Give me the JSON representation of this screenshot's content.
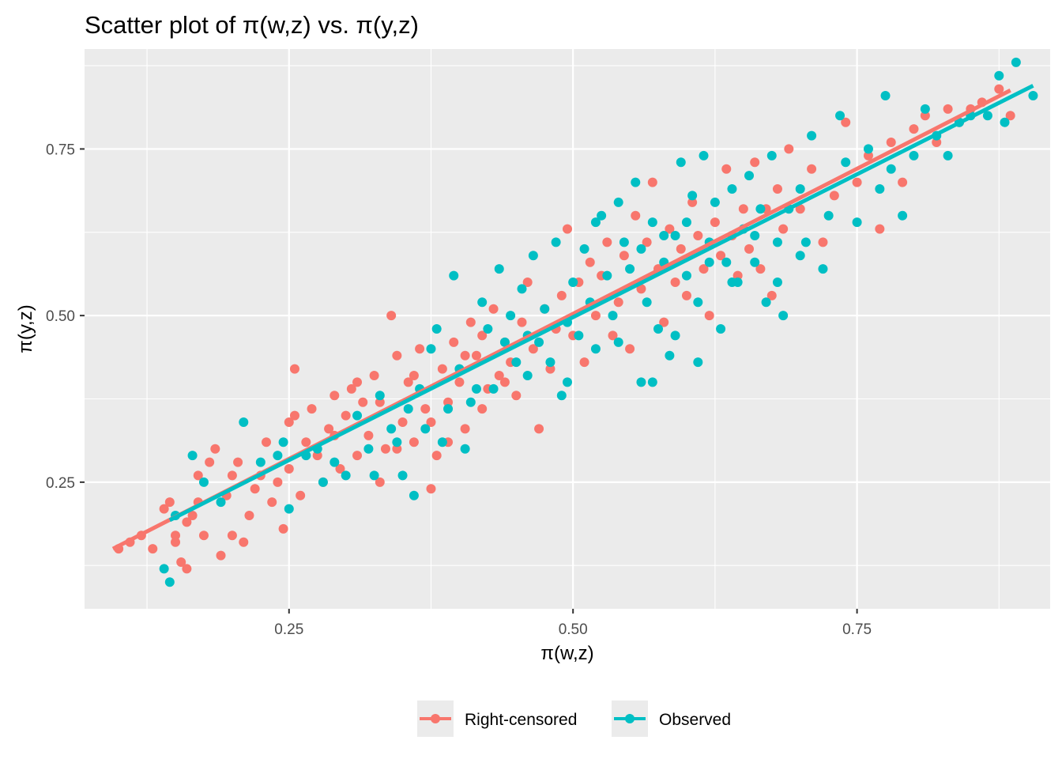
{
  "chart_data": {
    "type": "scatter",
    "title": "Scatter plot of π(w,z) vs. π(y,z)",
    "xlabel": "π(w,z)",
    "ylabel": "π(y,z)",
    "xlim": [
      0.07,
      0.92
    ],
    "ylim": [
      0.06,
      0.9
    ],
    "x_ticks": [
      0.25,
      0.5,
      0.75
    ],
    "x_tick_labels": [
      "0.25",
      "0.50",
      "0.75"
    ],
    "y_ticks": [
      0.25,
      0.5,
      0.75
    ],
    "y_tick_labels": [
      "0.25",
      "0.50",
      "0.75"
    ],
    "grid": true,
    "legend_position": "bottom",
    "series": [
      {
        "name": "Right-censored",
        "color": "#F8766D",
        "trend_line": {
          "x": [
            0.095,
            0.885
          ],
          "y": [
            0.15,
            0.838
          ]
        },
        "points": [
          [
            0.1,
            0.15
          ],
          [
            0.11,
            0.16
          ],
          [
            0.12,
            0.17
          ],
          [
            0.13,
            0.15
          ],
          [
            0.14,
            0.21
          ],
          [
            0.145,
            0.22
          ],
          [
            0.15,
            0.17
          ],
          [
            0.15,
            0.16
          ],
          [
            0.155,
            0.13
          ],
          [
            0.16,
            0.12
          ],
          [
            0.16,
            0.19
          ],
          [
            0.165,
            0.2
          ],
          [
            0.17,
            0.22
          ],
          [
            0.17,
            0.26
          ],
          [
            0.175,
            0.17
          ],
          [
            0.18,
            0.28
          ],
          [
            0.185,
            0.3
          ],
          [
            0.19,
            0.14
          ],
          [
            0.195,
            0.23
          ],
          [
            0.2,
            0.17
          ],
          [
            0.2,
            0.26
          ],
          [
            0.205,
            0.28
          ],
          [
            0.21,
            0.16
          ],
          [
            0.215,
            0.2
          ],
          [
            0.22,
            0.24
          ],
          [
            0.225,
            0.26
          ],
          [
            0.23,
            0.31
          ],
          [
            0.235,
            0.22
          ],
          [
            0.24,
            0.25
          ],
          [
            0.245,
            0.18
          ],
          [
            0.25,
            0.27
          ],
          [
            0.25,
            0.34
          ],
          [
            0.255,
            0.42
          ],
          [
            0.26,
            0.23
          ],
          [
            0.265,
            0.31
          ],
          [
            0.27,
            0.36
          ],
          [
            0.275,
            0.29
          ],
          [
            0.28,
            0.25
          ],
          [
            0.285,
            0.33
          ],
          [
            0.29,
            0.38
          ],
          [
            0.295,
            0.27
          ],
          [
            0.3,
            0.35
          ],
          [
            0.305,
            0.39
          ],
          [
            0.31,
            0.29
          ],
          [
            0.315,
            0.37
          ],
          [
            0.32,
            0.32
          ],
          [
            0.325,
            0.41
          ],
          [
            0.33,
            0.25
          ],
          [
            0.335,
            0.3
          ],
          [
            0.34,
            0.5
          ],
          [
            0.345,
            0.44
          ],
          [
            0.35,
            0.34
          ],
          [
            0.355,
            0.4
          ],
          [
            0.36,
            0.31
          ],
          [
            0.365,
            0.45
          ],
          [
            0.37,
            0.36
          ],
          [
            0.375,
            0.24
          ],
          [
            0.38,
            0.29
          ],
          [
            0.385,
            0.42
          ],
          [
            0.39,
            0.37
          ],
          [
            0.395,
            0.46
          ],
          [
            0.4,
            0.4
          ],
          [
            0.405,
            0.33
          ],
          [
            0.41,
            0.49
          ],
          [
            0.415,
            0.44
          ],
          [
            0.42,
            0.36
          ],
          [
            0.425,
            0.39
          ],
          [
            0.43,
            0.51
          ],
          [
            0.435,
            0.41
          ],
          [
            0.44,
            0.46
          ],
          [
            0.445,
            0.43
          ],
          [
            0.45,
            0.38
          ],
          [
            0.455,
            0.49
          ],
          [
            0.46,
            0.55
          ],
          [
            0.465,
            0.45
          ],
          [
            0.47,
            0.33
          ],
          [
            0.475,
            0.51
          ],
          [
            0.48,
            0.42
          ],
          [
            0.485,
            0.48
          ],
          [
            0.49,
            0.53
          ],
          [
            0.495,
            0.63
          ],
          [
            0.5,
            0.47
          ],
          [
            0.505,
            0.55
          ],
          [
            0.51,
            0.43
          ],
          [
            0.515,
            0.58
          ],
          [
            0.52,
            0.5
          ],
          [
            0.525,
            0.56
          ],
          [
            0.53,
            0.61
          ],
          [
            0.535,
            0.47
          ],
          [
            0.54,
            0.52
          ],
          [
            0.545,
            0.59
          ],
          [
            0.55,
            0.45
          ],
          [
            0.555,
            0.65
          ],
          [
            0.56,
            0.54
          ],
          [
            0.565,
            0.61
          ],
          [
            0.57,
            0.7
          ],
          [
            0.575,
            0.57
          ],
          [
            0.58,
            0.49
          ],
          [
            0.585,
            0.63
          ],
          [
            0.59,
            0.55
          ],
          [
            0.595,
            0.6
          ],
          [
            0.6,
            0.53
          ],
          [
            0.605,
            0.67
          ],
          [
            0.61,
            0.62
          ],
          [
            0.615,
            0.57
          ],
          [
            0.62,
            0.5
          ],
          [
            0.625,
            0.64
          ],
          [
            0.63,
            0.59
          ],
          [
            0.635,
            0.72
          ],
          [
            0.64,
            0.62
          ],
          [
            0.645,
            0.56
          ],
          [
            0.65,
            0.66
          ],
          [
            0.655,
            0.6
          ],
          [
            0.66,
            0.73
          ],
          [
            0.665,
            0.57
          ],
          [
            0.67,
            0.66
          ],
          [
            0.675,
            0.53
          ],
          [
            0.68,
            0.69
          ],
          [
            0.685,
            0.63
          ],
          [
            0.69,
            0.75
          ],
          [
            0.7,
            0.66
          ],
          [
            0.71,
            0.72
          ],
          [
            0.72,
            0.61
          ],
          [
            0.73,
            0.68
          ],
          [
            0.74,
            0.79
          ],
          [
            0.75,
            0.7
          ],
          [
            0.76,
            0.74
          ],
          [
            0.77,
            0.63
          ],
          [
            0.78,
            0.76
          ],
          [
            0.79,
            0.7
          ],
          [
            0.8,
            0.78
          ],
          [
            0.81,
            0.8
          ],
          [
            0.82,
            0.76
          ],
          [
            0.83,
            0.81
          ],
          [
            0.84,
            0.79
          ],
          [
            0.85,
            0.81
          ],
          [
            0.86,
            0.82
          ],
          [
            0.875,
            0.84
          ],
          [
            0.885,
            0.8
          ],
          [
            0.255,
            0.35
          ],
          [
            0.29,
            0.32
          ],
          [
            0.31,
            0.4
          ],
          [
            0.33,
            0.37
          ],
          [
            0.345,
            0.3
          ],
          [
            0.36,
            0.41
          ],
          [
            0.375,
            0.34
          ],
          [
            0.39,
            0.31
          ],
          [
            0.405,
            0.44
          ],
          [
            0.42,
            0.47
          ],
          [
            0.44,
            0.4
          ]
        ]
      },
      {
        "name": "Observed",
        "color": "#00BFC4",
        "trend_line": {
          "x": [
            0.145,
            0.905
          ],
          "y": [
            0.193,
            0.845
          ]
        },
        "points": [
          [
            0.14,
            0.12
          ],
          [
            0.145,
            0.1
          ],
          [
            0.15,
            0.2
          ],
          [
            0.165,
            0.29
          ],
          [
            0.175,
            0.25
          ],
          [
            0.19,
            0.22
          ],
          [
            0.21,
            0.34
          ],
          [
            0.225,
            0.28
          ],
          [
            0.24,
            0.29
          ],
          [
            0.245,
            0.31
          ],
          [
            0.25,
            0.21
          ],
          [
            0.265,
            0.29
          ],
          [
            0.275,
            0.3
          ],
          [
            0.28,
            0.25
          ],
          [
            0.29,
            0.28
          ],
          [
            0.3,
            0.26
          ],
          [
            0.31,
            0.35
          ],
          [
            0.32,
            0.3
          ],
          [
            0.325,
            0.26
          ],
          [
            0.33,
            0.38
          ],
          [
            0.34,
            0.33
          ],
          [
            0.345,
            0.31
          ],
          [
            0.35,
            0.26
          ],
          [
            0.355,
            0.36
          ],
          [
            0.36,
            0.23
          ],
          [
            0.365,
            0.39
          ],
          [
            0.37,
            0.33
          ],
          [
            0.375,
            0.45
          ],
          [
            0.38,
            0.48
          ],
          [
            0.385,
            0.31
          ],
          [
            0.39,
            0.36
          ],
          [
            0.395,
            0.56
          ],
          [
            0.4,
            0.42
          ],
          [
            0.405,
            0.3
          ],
          [
            0.41,
            0.37
          ],
          [
            0.415,
            0.39
          ],
          [
            0.42,
            0.52
          ],
          [
            0.425,
            0.48
          ],
          [
            0.43,
            0.39
          ],
          [
            0.435,
            0.57
          ],
          [
            0.44,
            0.46
          ],
          [
            0.445,
            0.5
          ],
          [
            0.45,
            0.43
          ],
          [
            0.455,
            0.54
          ],
          [
            0.46,
            0.47
          ],
          [
            0.465,
            0.59
          ],
          [
            0.47,
            0.46
          ],
          [
            0.475,
            0.51
          ],
          [
            0.48,
            0.43
          ],
          [
            0.485,
            0.61
          ],
          [
            0.49,
            0.38
          ],
          [
            0.495,
            0.49
          ],
          [
            0.5,
            0.55
          ],
          [
            0.505,
            0.47
          ],
          [
            0.51,
            0.6
          ],
          [
            0.515,
            0.52
          ],
          [
            0.52,
            0.45
          ],
          [
            0.525,
            0.65
          ],
          [
            0.53,
            0.56
          ],
          [
            0.535,
            0.5
          ],
          [
            0.54,
            0.46
          ],
          [
            0.545,
            0.61
          ],
          [
            0.55,
            0.57
          ],
          [
            0.555,
            0.7
          ],
          [
            0.56,
            0.4
          ],
          [
            0.565,
            0.52
          ],
          [
            0.57,
            0.64
          ],
          [
            0.575,
            0.48
          ],
          [
            0.58,
            0.58
          ],
          [
            0.585,
            0.44
          ],
          [
            0.59,
            0.62
          ],
          [
            0.595,
            0.73
          ],
          [
            0.6,
            0.56
          ],
          [
            0.605,
            0.68
          ],
          [
            0.61,
            0.52
          ],
          [
            0.615,
            0.74
          ],
          [
            0.62,
            0.61
          ],
          [
            0.625,
            0.67
          ],
          [
            0.63,
            0.48
          ],
          [
            0.635,
            0.58
          ],
          [
            0.64,
            0.69
          ],
          [
            0.645,
            0.55
          ],
          [
            0.65,
            0.63
          ],
          [
            0.655,
            0.71
          ],
          [
            0.66,
            0.58
          ],
          [
            0.665,
            0.66
          ],
          [
            0.67,
            0.52
          ],
          [
            0.675,
            0.74
          ],
          [
            0.68,
            0.61
          ],
          [
            0.685,
            0.5
          ],
          [
            0.69,
            0.66
          ],
          [
            0.7,
            0.69
          ],
          [
            0.705,
            0.61
          ],
          [
            0.71,
            0.77
          ],
          [
            0.72,
            0.57
          ],
          [
            0.725,
            0.65
          ],
          [
            0.735,
            0.8
          ],
          [
            0.74,
            0.73
          ],
          [
            0.75,
            0.64
          ],
          [
            0.76,
            0.75
          ],
          [
            0.77,
            0.69
          ],
          [
            0.775,
            0.83
          ],
          [
            0.78,
            0.72
          ],
          [
            0.79,
            0.65
          ],
          [
            0.8,
            0.74
          ],
          [
            0.81,
            0.81
          ],
          [
            0.82,
            0.77
          ],
          [
            0.83,
            0.74
          ],
          [
            0.84,
            0.79
          ],
          [
            0.85,
            0.8
          ],
          [
            0.865,
            0.8
          ],
          [
            0.875,
            0.86
          ],
          [
            0.88,
            0.79
          ],
          [
            0.89,
            0.88
          ],
          [
            0.905,
            0.83
          ],
          [
            0.57,
            0.4
          ],
          [
            0.59,
            0.47
          ],
          [
            0.61,
            0.43
          ],
          [
            0.495,
            0.4
          ],
          [
            0.46,
            0.41
          ],
          [
            0.52,
            0.64
          ],
          [
            0.54,
            0.67
          ],
          [
            0.56,
            0.6
          ],
          [
            0.58,
            0.62
          ],
          [
            0.6,
            0.64
          ],
          [
            0.62,
            0.58
          ],
          [
            0.64,
            0.55
          ],
          [
            0.66,
            0.62
          ],
          [
            0.68,
            0.55
          ],
          [
            0.7,
            0.59
          ]
        ]
      }
    ]
  }
}
